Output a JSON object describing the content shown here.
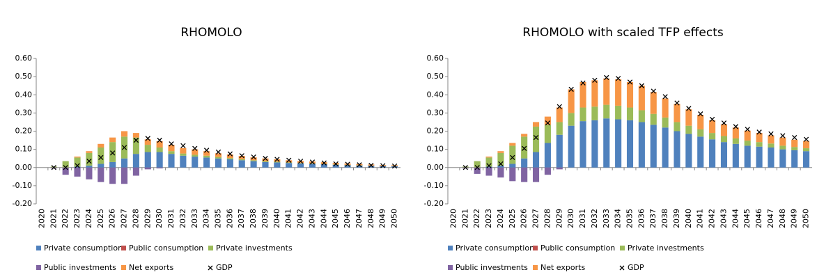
{
  "chart_data": [
    {
      "type": "bar",
      "stacked": true,
      "title": "RHOMOLO",
      "categories": [
        "2020",
        "2021",
        "2022",
        "2023",
        "2024",
        "2025",
        "2026",
        "2027",
        "2028",
        "2029",
        "2030",
        "2031",
        "2032",
        "2033",
        "2034",
        "2035",
        "2036",
        "2037",
        "2038",
        "2039",
        "2040",
        "2041",
        "2042",
        "2043",
        "2044",
        "2045",
        "2046",
        "2047",
        "2048",
        "2049",
        "2050"
      ],
      "ylim": [
        -0.2,
        0.6
      ],
      "yticks": [
        {
          "value": -0.2,
          "label": "-0.20"
        },
        {
          "value": -0.1,
          "label": "-0.10"
        },
        {
          "value": 0,
          "label": "0.00"
        },
        {
          "value": 0.1,
          "label": "0.10"
        },
        {
          "value": 0.2,
          "label": "0.20"
        },
        {
          "value": 0.3,
          "label": "0.30"
        },
        {
          "value": 0.4,
          "label": "0.40"
        },
        {
          "value": 0.5,
          "label": "0.50"
        },
        {
          "value": 0.6,
          "label": "0.60"
        }
      ],
      "grid": false,
      "legend": "bottom",
      "series": [
        {
          "name": "Private consumption",
          "color": "#4f81bd",
          "kind": "bar",
          "values": [
            0,
            0,
            0,
            0.005,
            0.01,
            0.02,
            0.03,
            0.05,
            0.075,
            0.085,
            0.085,
            0.075,
            0.065,
            0.06,
            0.055,
            0.05,
            0.045,
            0.04,
            0.035,
            0.03,
            0.028,
            0.025,
            0.022,
            0.02,
            0.018,
            0.015,
            0.013,
            0.011,
            0.01,
            0.008,
            0.007
          ]
        },
        {
          "name": "Public consumption",
          "color": "#c0504d",
          "kind": "bar",
          "values": [
            0,
            0,
            0,
            0,
            0,
            0,
            0,
            0,
            0,
            0,
            0,
            0,
            0,
            0,
            0,
            0,
            0,
            0,
            0,
            0,
            0,
            0,
            0,
            0,
            0,
            0,
            0,
            0,
            0,
            0,
            0
          ]
        },
        {
          "name": "Private investments",
          "color": "#9bbb59",
          "kind": "bar",
          "values": [
            0,
            0.005,
            0.035,
            0.05,
            0.07,
            0.09,
            0.11,
            0.12,
            0.09,
            0.04,
            0.025,
            0.015,
            0.012,
            0.01,
            0.01,
            0.008,
            0.007,
            0.006,
            0.005,
            0.005,
            0.004,
            0.003,
            0.003,
            0.003,
            0.002,
            0.002,
            0.002,
            0.002,
            0.001,
            0.001,
            0.001
          ]
        },
        {
          "name": "Public investments",
          "color": "#8064a2",
          "kind": "bar",
          "values": [
            0,
            -0.005,
            -0.04,
            -0.05,
            -0.065,
            -0.08,
            -0.09,
            -0.09,
            -0.045,
            -0.01,
            -0.005,
            0,
            0,
            0,
            0,
            0,
            0,
            0,
            0,
            0,
            0,
            0,
            0,
            0,
            0,
            0,
            0,
            0,
            0,
            0,
            0
          ]
        },
        {
          "name": "Net exports",
          "color": "#f79646",
          "kind": "bar",
          "values": [
            0,
            0,
            0,
            0.005,
            0.01,
            0.02,
            0.025,
            0.03,
            0.025,
            0.03,
            0.035,
            0.035,
            0.03,
            0.03,
            0.025,
            0.02,
            0.02,
            0.018,
            0.016,
            0.015,
            0.013,
            0.012,
            0.011,
            0.01,
            0.009,
            0.008,
            0.007,
            0.006,
            0.006,
            0.005,
            0.005
          ]
        },
        {
          "name": "GDP",
          "color": "#000000",
          "kind": "marker",
          "values": [
            null,
            0,
            0,
            0.01,
            0.035,
            0.055,
            0.08,
            0.11,
            0.15,
            0.16,
            0.15,
            0.13,
            0.12,
            0.105,
            0.095,
            0.085,
            0.075,
            0.065,
            0.058,
            0.05,
            0.045,
            0.04,
            0.035,
            0.03,
            0.025,
            0.02,
            0.018,
            0.015,
            0.012,
            0.01,
            0.008
          ]
        }
      ]
    },
    {
      "type": "bar",
      "stacked": true,
      "title": "RHOMOLO with scaled TFP effects",
      "categories": [
        "2020",
        "2021",
        "2022",
        "2023",
        "2024",
        "2025",
        "2026",
        "2027",
        "2028",
        "2029",
        "2030",
        "2031",
        "2032",
        "2033",
        "2034",
        "2035",
        "2036",
        "2037",
        "2038",
        "2039",
        "2040",
        "2041",
        "2042",
        "2043",
        "2044",
        "2045",
        "2046",
        "2047",
        "2048",
        "2049",
        "2050"
      ],
      "ylim": [
        -0.2,
        0.6
      ],
      "yticks": [
        {
          "value": -0.2,
          "label": "-0.20"
        },
        {
          "value": -0.1,
          "label": "-0.10"
        },
        {
          "value": 0,
          "label": "0.00"
        },
        {
          "value": 0.1,
          "label": "0.10"
        },
        {
          "value": 0.2,
          "label": "0.20"
        },
        {
          "value": 0.3,
          "label": "0.30"
        },
        {
          "value": 0.4,
          "label": "0.40"
        },
        {
          "value": 0.5,
          "label": "0.50"
        },
        {
          "value": 0.6,
          "label": "0.60"
        }
      ],
      "grid": false,
      "legend": "bottom",
      "series": [
        {
          "name": "Private consumption",
          "color": "#4f81bd",
          "kind": "bar",
          "values": [
            0,
            0,
            0,
            0.005,
            0.01,
            0.02,
            0.05,
            0.085,
            0.135,
            0.18,
            0.23,
            0.255,
            0.26,
            0.27,
            0.265,
            0.26,
            0.25,
            0.235,
            0.22,
            0.2,
            0.185,
            0.17,
            0.155,
            0.14,
            0.13,
            0.12,
            0.115,
            0.11,
            0.1,
            0.095,
            0.09
          ]
        },
        {
          "name": "Public consumption",
          "color": "#c0504d",
          "kind": "bar",
          "values": [
            0,
            0,
            0,
            0,
            0,
            0,
            0,
            0,
            0,
            0,
            0,
            0,
            0,
            0,
            0,
            0,
            0,
            0,
            0,
            0,
            0,
            0,
            0,
            0,
            0,
            0,
            0,
            0,
            0,
            0,
            0
          ]
        },
        {
          "name": "Private investments",
          "color": "#9bbb59",
          "kind": "bar",
          "values": [
            0,
            0.005,
            0.035,
            0.05,
            0.07,
            0.1,
            0.12,
            0.14,
            0.1,
            0.07,
            0.07,
            0.075,
            0.075,
            0.075,
            0.075,
            0.07,
            0.065,
            0.06,
            0.055,
            0.05,
            0.045,
            0.04,
            0.035,
            0.033,
            0.03,
            0.028,
            0.025,
            0.022,
            0.02,
            0.018,
            0.016
          ]
        },
        {
          "name": "Public investments",
          "color": "#8064a2",
          "kind": "bar",
          "values": [
            0,
            -0.005,
            -0.035,
            -0.045,
            -0.055,
            -0.075,
            -0.08,
            -0.08,
            -0.04,
            -0.01,
            0,
            0,
            0,
            0,
            0,
            0,
            0,
            0,
            0,
            0,
            0,
            0,
            0,
            0,
            0,
            0,
            0,
            0,
            0,
            0,
            0
          ]
        },
        {
          "name": "Net exports",
          "color": "#f79646",
          "kind": "bar",
          "values": [
            0,
            0,
            0,
            0.005,
            0.01,
            0.015,
            0.015,
            0.025,
            0.045,
            0.08,
            0.13,
            0.14,
            0.145,
            0.145,
            0.145,
            0.14,
            0.135,
            0.12,
            0.105,
            0.1,
            0.09,
            0.08,
            0.07,
            0.065,
            0.06,
            0.055,
            0.05,
            0.045,
            0.045,
            0.04,
            0.04
          ]
        },
        {
          "name": "GDP",
          "color": "#000000",
          "kind": "marker",
          "values": [
            null,
            0,
            0,
            0.01,
            0.02,
            0.055,
            0.105,
            0.165,
            0.245,
            0.335,
            0.43,
            0.465,
            0.48,
            0.495,
            0.49,
            0.47,
            0.45,
            0.42,
            0.39,
            0.355,
            0.325,
            0.295,
            0.265,
            0.245,
            0.225,
            0.21,
            0.195,
            0.185,
            0.175,
            0.165,
            0.155
          ]
        }
      ]
    }
  ]
}
